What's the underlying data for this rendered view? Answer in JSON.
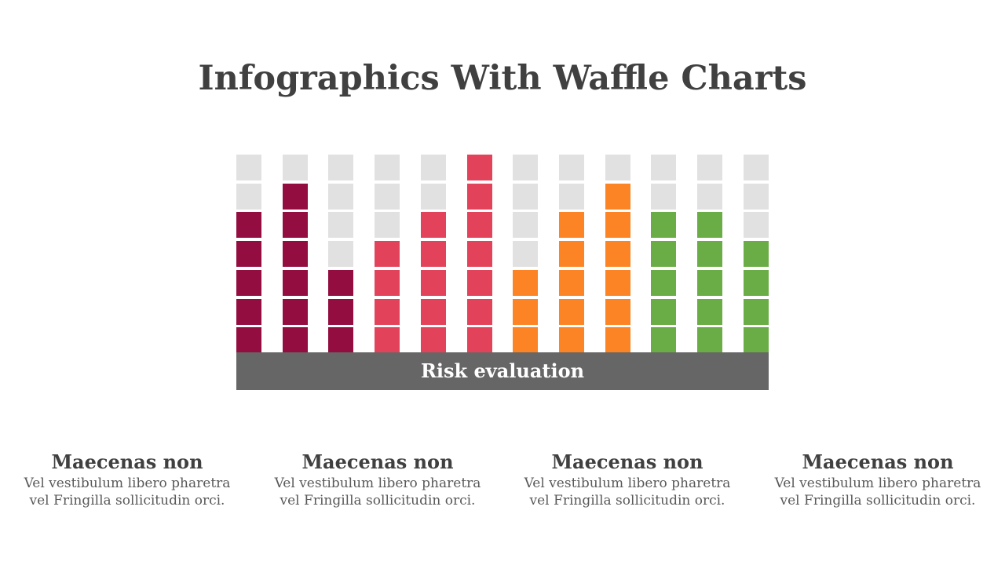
{
  "title": "Infographics With Waffle Charts",
  "chart_data": {
    "type": "waffle",
    "title": "",
    "label": "Risk evaluation",
    "rows_per_column": 7,
    "empty_color": "#e1e1e1",
    "columns": [
      {
        "filled": 5,
        "color": "#930d40"
      },
      {
        "filled": 6,
        "color": "#930d40"
      },
      {
        "filled": 3,
        "color": "#930d40"
      },
      {
        "filled": 4,
        "color": "#e3435a"
      },
      {
        "filled": 5,
        "color": "#e3435a"
      },
      {
        "filled": 7,
        "color": "#e3435a"
      },
      {
        "filled": 3,
        "color": "#fd8424"
      },
      {
        "filled": 5,
        "color": "#fd8424"
      },
      {
        "filled": 6,
        "color": "#fd8424"
      },
      {
        "filled": 5,
        "color": "#6aac45"
      },
      {
        "filled": 5,
        "color": "#6aac45"
      },
      {
        "filled": 4,
        "color": "#6aac45"
      }
    ]
  },
  "cards": [
    {
      "title": "Maecenas non",
      "line1": "Vel vestibulum libero pharetra",
      "line2": "vel Fringilla sollicitudin orci."
    },
    {
      "title": "Maecenas non",
      "line1": "Vel vestibulum libero pharetra",
      "line2": "vel Fringilla sollicitudin orci."
    },
    {
      "title": "Maecenas non",
      "line1": "Vel vestibulum libero pharetra",
      "line2": "vel Fringilla sollicitudin orci."
    },
    {
      "title": "Maecenas non",
      "line1": "Vel vestibulum libero pharetra",
      "line2": "vel Fringilla sollicitudin orci."
    }
  ]
}
